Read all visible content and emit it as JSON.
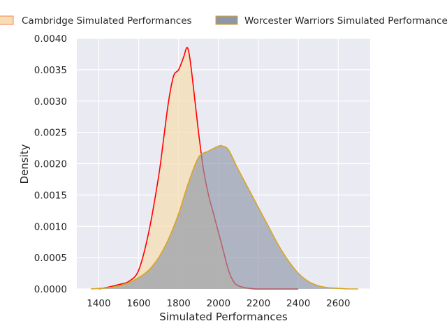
{
  "chart_data": {
    "type": "area",
    "title": "",
    "xlabel": "Simulated Performances",
    "ylabel": "Density",
    "xlim": [
      1290,
      2760
    ],
    "ylim": [
      0,
      0.004
    ],
    "xticks": [
      1400,
      1600,
      1800,
      2000,
      2200,
      2400,
      2600
    ],
    "yticks": [
      "0.0000",
      "0.0005",
      "0.0010",
      "0.0015",
      "0.0020",
      "0.0025",
      "0.0030",
      "0.0035",
      "0.0040"
    ],
    "grid": true,
    "background": "#eaeaf2",
    "legend_position": "top",
    "series": [
      {
        "name": "Cambridge Simulated Performances",
        "fill": "#f5deb3",
        "fill_opacity": 0.75,
        "line": "#ff0000",
        "x": [
          1400,
          1450,
          1500,
          1550,
          1600,
          1650,
          1700,
          1725,
          1750,
          1775,
          1800,
          1825,
          1840,
          1850,
          1860,
          1875,
          1900,
          1925,
          1950,
          1975,
          2000,
          2025,
          2050,
          2075,
          2100,
          2150,
          2200,
          2300,
          2400
        ],
        "y": [
          0.0,
          3e-05,
          7e-05,
          0.00012,
          0.0003,
          0.0009,
          0.0018,
          0.0024,
          0.003,
          0.0034,
          0.0035,
          0.0037,
          0.00385,
          0.0038,
          0.0036,
          0.0032,
          0.0025,
          0.0019,
          0.0015,
          0.0012,
          0.0009,
          0.0006,
          0.0003,
          0.00012,
          5e-05,
          1e-05,
          0.0,
          0.0,
          0.0
        ]
      },
      {
        "name": "Worcester Warriors Simulated Performances",
        "fill": "#8f96a8",
        "fill_opacity": 0.65,
        "line": "#daa520",
        "x": [
          1360,
          1450,
          1500,
          1550,
          1600,
          1650,
          1700,
          1750,
          1800,
          1850,
          1900,
          1950,
          2000,
          2020,
          2050,
          2100,
          2150,
          2200,
          2250,
          2300,
          2350,
          2400,
          2450,
          2500,
          2550,
          2600,
          2650,
          2700
        ],
        "y": [
          0.0,
          2e-05,
          5e-05,
          0.0001,
          0.00018,
          0.0003,
          0.0005,
          0.0008,
          0.0012,
          0.0017,
          0.0021,
          0.0022,
          0.00228,
          0.00228,
          0.00222,
          0.0019,
          0.0016,
          0.0013,
          0.001,
          0.0007,
          0.00045,
          0.00025,
          0.00012,
          5e-05,
          2e-05,
          1e-05,
          0.0,
          0.0
        ]
      }
    ]
  }
}
